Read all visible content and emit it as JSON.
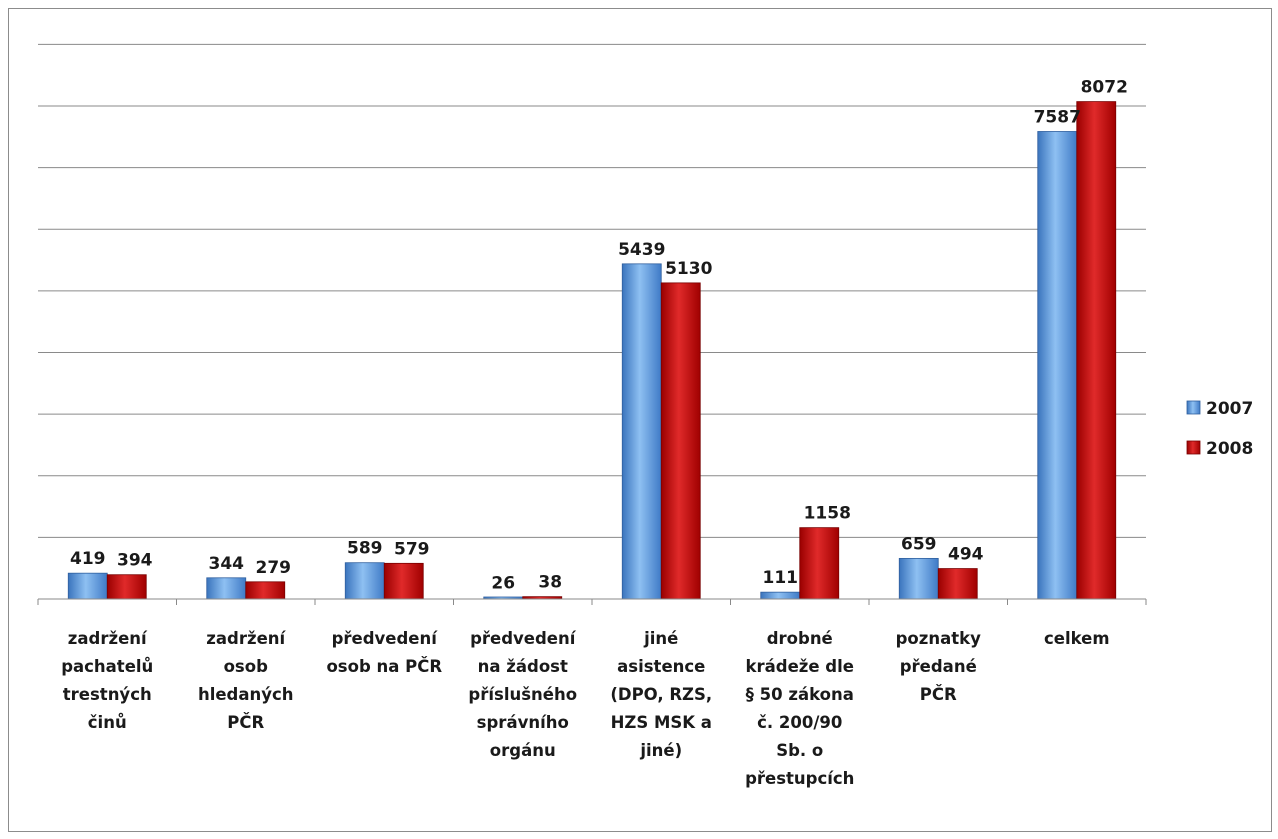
{
  "chart_data": {
    "type": "bar",
    "categories": [
      [
        "zadržení",
        "pachatelů",
        "trestných",
        "činů"
      ],
      [
        "zadržení",
        "osob",
        "hledaných",
        "PČR"
      ],
      [
        "předvedení",
        "osob na PČR"
      ],
      [
        "předvedení",
        "na žádost",
        "příslušného",
        "správního",
        "orgánu"
      ],
      [
        "jiné",
        "asistence",
        "(DPO, RZS,",
        "HZS MSK a",
        "jiné)"
      ],
      [
        "drobné",
        "krádeže dle",
        "§ 50 zákona",
        "č. 200/90",
        "Sb. o",
        "přestupcích"
      ],
      [
        "poznatky",
        "předané",
        "PČR"
      ],
      [
        "celkem"
      ]
    ],
    "series": [
      {
        "name": "2007",
        "values": [
          419,
          344,
          589,
          26,
          5439,
          111,
          659,
          7587
        ],
        "color": "#4f8fd6"
      },
      {
        "name": "2008",
        "values": [
          394,
          279,
          579,
          38,
          5130,
          1158,
          494,
          8072
        ],
        "color": "#c00000"
      }
    ],
    "ylim": [
      0,
      9000
    ],
    "gridlines": true,
    "legend_position": "right"
  }
}
